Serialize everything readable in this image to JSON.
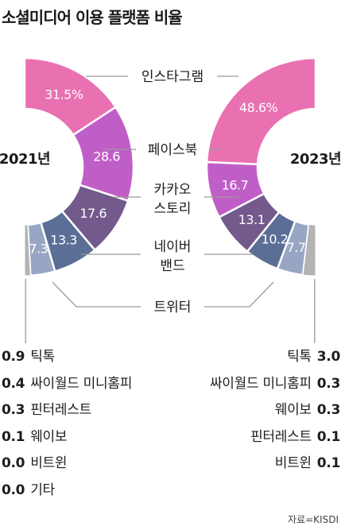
{
  "title": "소셜미디어 이용 플랫폼 비율",
  "source": "자료=KISDI",
  "colors": {
    "instagram": "#e971b1",
    "facebook": "#c05ec8",
    "kakaostory": "#73598c",
    "band": "#5b6e96",
    "twitter": "#98a6c4",
    "minor": "#b3b3b3",
    "connector": "#9a9a9a"
  },
  "chart_data": {
    "type": "donut",
    "unit": "%",
    "platforms": [
      {
        "key": "instagram",
        "label": "인스타그램",
        "color_key": "instagram"
      },
      {
        "key": "facebook",
        "label": "페이스북",
        "color_key": "facebook"
      },
      {
        "key": "kakaostory",
        "label": "카카오\n스토리",
        "color_key": "kakaostory"
      },
      {
        "key": "band",
        "label": "네이버\n밴드",
        "color_key": "band"
      },
      {
        "key": "twitter",
        "label": "트위터",
        "color_key": "twitter"
      }
    ],
    "years": [
      {
        "label": "2021년",
        "values": {
          "instagram": "31.5%",
          "facebook": "28.6",
          "kakaostory": "17.6",
          "band": "13.3",
          "twitter": "7.3"
        },
        "minor": [
          {
            "label": "틱톡",
            "value": "0.9"
          },
          {
            "label": "싸이월드 미니홈피",
            "value": "0.4"
          },
          {
            "label": "핀터레스트",
            "value": "0.3"
          },
          {
            "label": "웨이보",
            "value": "0.1"
          },
          {
            "label": "비트윈",
            "value": "0.0"
          },
          {
            "label": "기타",
            "value": "0.0"
          }
        ]
      },
      {
        "label": "2023년",
        "values": {
          "instagram": "48.6%",
          "facebook": "16.7",
          "kakaostory": "13.1",
          "band": "10.2",
          "twitter": "7.7"
        },
        "minor": [
          {
            "label": "틱톡",
            "value": "3.0"
          },
          {
            "label": "싸이월드 미니홈피",
            "value": "0.3"
          },
          {
            "label": "웨이보",
            "value": "0.3"
          },
          {
            "label": "핀터레스트",
            "value": "0.1"
          },
          {
            "label": "비트윈",
            "value": "0.1"
          }
        ]
      }
    ]
  }
}
